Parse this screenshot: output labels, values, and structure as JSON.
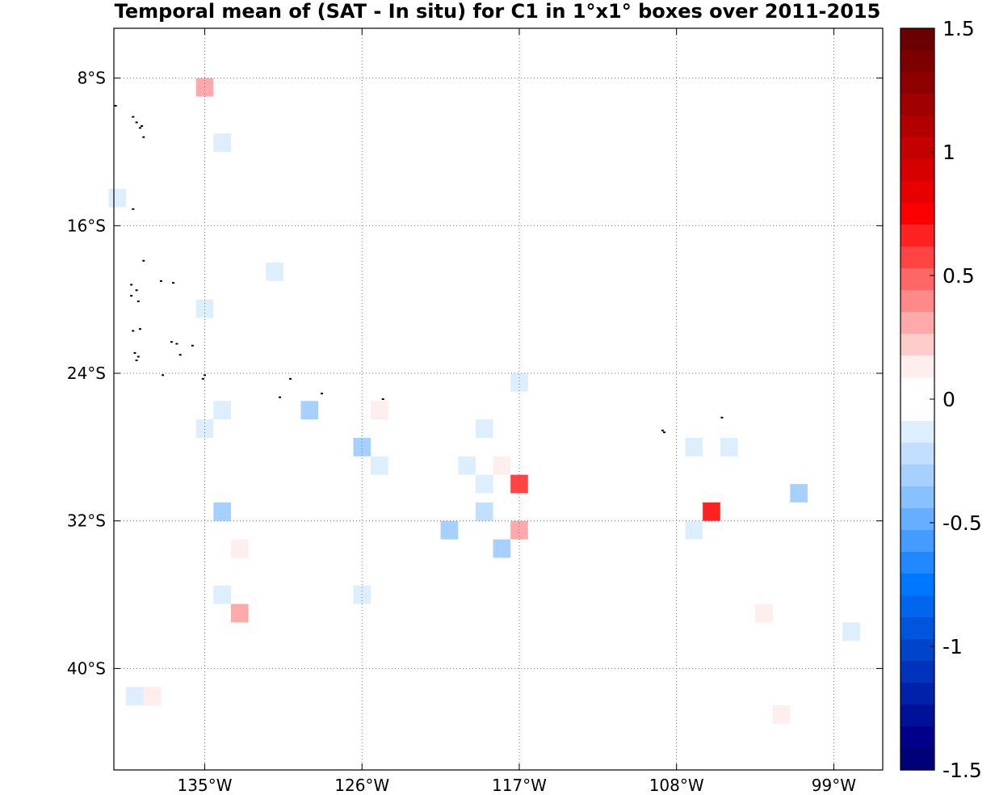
{
  "title": "Temporal mean of (SAT - In situ) for C1 in 1°x1° boxes over 2011-2015",
  "axes": {
    "x_ticks": [
      {
        "value": -135,
        "label": "135°W"
      },
      {
        "value": -126,
        "label": "126°W"
      },
      {
        "value": -117,
        "label": "117°W"
      },
      {
        "value": -108,
        "label": "108°W"
      },
      {
        "value": -99,
        "label": "99°W"
      }
    ],
    "y_ticks": [
      {
        "value": -8,
        "label": "8°S"
      },
      {
        "value": -16,
        "label": "16°S"
      },
      {
        "value": -24,
        "label": "24°S"
      },
      {
        "value": -32,
        "label": "32°S"
      },
      {
        "value": -40,
        "label": "40°S"
      }
    ],
    "xlim": [
      -140.2,
      -96.2
    ],
    "ylim": [
      -45.5,
      -5.3
    ],
    "grid": "dotted"
  },
  "colorbar": {
    "range": [
      -1.5,
      1.5
    ],
    "ticks": [
      {
        "value": 1.5,
        "label": "1.5"
      },
      {
        "value": 1,
        "label": "1"
      },
      {
        "value": 0.5,
        "label": "0.5"
      },
      {
        "value": 0,
        "label": "0"
      },
      {
        "value": -0.5,
        "label": "-0.5"
      },
      {
        "value": -1,
        "label": "-1"
      },
      {
        "value": -1.5,
        "label": "-1.5"
      }
    ],
    "colors_top_to_bottom": [
      "#6a0000",
      "#7c0000",
      "#8e0000",
      "#a00000",
      "#b20000",
      "#c40000",
      "#d60000",
      "#e80000",
      "#fa0000",
      "#ff2222",
      "#ff4444",
      "#ff6666",
      "#ff8888",
      "#ffaaaa",
      "#ffcccc",
      "#ffeeee",
      "#ffffff",
      "#ffffff",
      "#ddeeff",
      "#c3dfff",
      "#a6d0ff",
      "#88c1ff",
      "#66afff",
      "#449cff",
      "#2288ff",
      "#0077ff",
      "#0066ee",
      "#0055dd",
      "#0044cc",
      "#0033bb",
      "#0022aa",
      "#001199",
      "#000088",
      "#000077"
    ]
  },
  "chart_data": {
    "type": "heatmap",
    "title": "Temporal mean of (SAT - In situ) for C1 in 1°x1° boxes over 2011-2015",
    "cell_size_deg": 1,
    "value_range": [
      -1.5,
      1.5
    ],
    "cells": [
      {
        "lon": -135,
        "lat": -8.5,
        "value": 0.3
      },
      {
        "lon": -134,
        "lat": -11.5,
        "value": -0.1
      },
      {
        "lon": -140,
        "lat": -14.5,
        "value": -0.1
      },
      {
        "lon": -131,
        "lat": -18.5,
        "value": -0.1
      },
      {
        "lon": -135,
        "lat": -20.5,
        "value": -0.1
      },
      {
        "lon": -117,
        "lat": -24.5,
        "value": -0.1
      },
      {
        "lon": -134,
        "lat": -26,
        "value": -0.1
      },
      {
        "lon": -135,
        "lat": -27,
        "value": -0.1
      },
      {
        "lon": -129,
        "lat": -26,
        "value": -0.3
      },
      {
        "lon": -125,
        "lat": -26,
        "value": 0.15
      },
      {
        "lon": -126,
        "lat": -28,
        "value": -0.3
      },
      {
        "lon": -125,
        "lat": -29,
        "value": -0.1
      },
      {
        "lon": -119,
        "lat": -27,
        "value": -0.1
      },
      {
        "lon": -120,
        "lat": -29,
        "value": -0.1
      },
      {
        "lon": -119,
        "lat": -30,
        "value": -0.1
      },
      {
        "lon": -118,
        "lat": -29,
        "value": 0.15
      },
      {
        "lon": -117,
        "lat": -30,
        "value": 0.6
      },
      {
        "lon": -107,
        "lat": -28,
        "value": -0.1
      },
      {
        "lon": -105,
        "lat": -28,
        "value": -0.1
      },
      {
        "lon": -134,
        "lat": -31.5,
        "value": -0.3
      },
      {
        "lon": -119,
        "lat": -31.5,
        "value": -0.2
      },
      {
        "lon": -121,
        "lat": -32.5,
        "value": -0.3
      },
      {
        "lon": -118,
        "lat": -33.5,
        "value": -0.3
      },
      {
        "lon": -117,
        "lat": -32.5,
        "value": 0.3
      },
      {
        "lon": -106,
        "lat": -31.5,
        "value": 0.7
      },
      {
        "lon": -107,
        "lat": -32.5,
        "value": -0.1
      },
      {
        "lon": -101,
        "lat": -30.5,
        "value": -0.3
      },
      {
        "lon": -133,
        "lat": -33.5,
        "value": 0.15
      },
      {
        "lon": -134,
        "lat": -36,
        "value": -0.1
      },
      {
        "lon": -126,
        "lat": -36,
        "value": -0.1
      },
      {
        "lon": -133,
        "lat": -37,
        "value": 0.3
      },
      {
        "lon": -103,
        "lat": -37,
        "value": 0.15
      },
      {
        "lon": -98,
        "lat": -38,
        "value": -0.1
      },
      {
        "lon": -139,
        "lat": -41.5,
        "value": -0.1
      },
      {
        "lon": -138,
        "lat": -41.5,
        "value": 0.15
      },
      {
        "lon": -102,
        "lat": -42.5,
        "value": 0.15
      }
    ],
    "land_points": [
      [
        -140.1,
        -9.5
      ],
      [
        -139.1,
        -10.1
      ],
      [
        -138.9,
        -10.4
      ],
      [
        -138.7,
        -10.7
      ],
      [
        -138.6,
        -10.6
      ],
      [
        -138.5,
        -11.2
      ],
      [
        -139.1,
        -15.1
      ],
      [
        -138.5,
        -17.9
      ],
      [
        -139.2,
        -19.2
      ],
      [
        -138.9,
        -19.5
      ],
      [
        -137.5,
        -19.0
      ],
      [
        -136.8,
        -19.1
      ],
      [
        -139.2,
        -19.8
      ],
      [
        -138.8,
        -20.1
      ],
      [
        -139.1,
        -21.7
      ],
      [
        -138.7,
        -21.6
      ],
      [
        -136.9,
        -22.3
      ],
      [
        -136.6,
        -22.4
      ],
      [
        -135.7,
        -22.5
      ],
      [
        -136.4,
        -23.0
      ],
      [
        -139.0,
        -22.9
      ],
      [
        -138.8,
        -23.1
      ],
      [
        -138.9,
        -23.3
      ],
      [
        -137.4,
        -24.1
      ],
      [
        -135.1,
        -24.3
      ],
      [
        -135.0,
        -24.1
      ],
      [
        -130.1,
        -24.3
      ],
      [
        -128.3,
        -25.1
      ],
      [
        -130.7,
        -25.3
      ],
      [
        -124.8,
        -25.4
      ],
      [
        -108.7,
        -27.2
      ],
      [
        -108.8,
        -27.1
      ],
      [
        -105.4,
        -26.4
      ]
    ]
  }
}
